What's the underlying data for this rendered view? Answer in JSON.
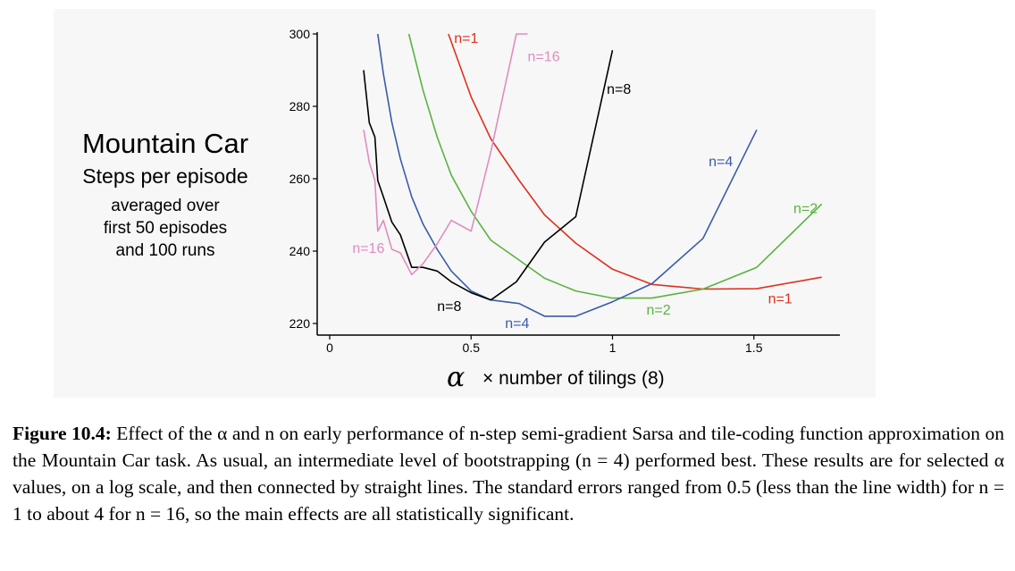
{
  "chart_data": {
    "type": "line",
    "title": "Mountain Car",
    "subtitle": "Steps per episode",
    "description_lines": [
      "averaged over",
      "first 50 episodes",
      "and 100 runs"
    ],
    "xlabel_symbol": "α",
    "xlabel_text": "× number of tilings (8)",
    "ylabel": "",
    "xlim": [
      0,
      1.8
    ],
    "ylim": [
      220,
      300
    ],
    "xticks": [
      0,
      0.5,
      1,
      1.5
    ],
    "xtick_labels": [
      "0",
      "0.5",
      "1",
      "1.5"
    ],
    "yticks": [
      220,
      240,
      260,
      280,
      300
    ],
    "ytick_labels": [
      "220",
      "240",
      "260",
      "280",
      "300"
    ],
    "grid": false,
    "series": [
      {
        "name": "n=1",
        "color": "#e0301e",
        "x": [
          0.42,
          0.5,
          0.57,
          0.67,
          0.76,
          0.87,
          1.0,
          1.14,
          1.32,
          1.51,
          1.74
        ],
        "y": [
          300,
          282.6,
          271,
          259.5,
          250,
          242.2,
          235,
          230.8,
          229.5,
          229.6,
          232.8
        ]
      },
      {
        "name": "n=2",
        "color": "#5ab33e",
        "x": [
          0.28,
          0.33,
          0.38,
          0.43,
          0.5,
          0.57,
          0.67,
          0.76,
          0.87,
          1.0,
          1.14,
          1.32,
          1.51,
          1.74
        ],
        "y": [
          300,
          284.5,
          271.5,
          261,
          251,
          243,
          237.5,
          232.5,
          229,
          227,
          227,
          229.5,
          235.5,
          253
        ]
      },
      {
        "name": "n=4",
        "color": "#3a5ba8",
        "x": [
          0.17,
          0.19,
          0.22,
          0.25,
          0.29,
          0.33,
          0.38,
          0.43,
          0.5,
          0.57,
          0.67,
          0.76,
          0.87,
          1.0,
          1.14,
          1.32,
          1.51
        ],
        "y": [
          300,
          289,
          275.5,
          265.5,
          255,
          247.5,
          240.5,
          234.5,
          229,
          226.5,
          225.5,
          222,
          222,
          226,
          231,
          243.5,
          273.5
        ]
      },
      {
        "name": "n=8",
        "color": "#000000",
        "x": [
          0.12,
          0.14,
          0.16,
          0.17,
          0.19,
          0.22,
          0.25,
          0.29,
          0.33,
          0.38,
          0.43,
          0.5,
          0.57,
          0.66,
          0.76,
          0.87,
          1.0
        ],
        "y": [
          290,
          275.5,
          271.5,
          259.5,
          255,
          248,
          244.5,
          235.5,
          235.5,
          234.5,
          231.5,
          228.5,
          226.5,
          231.5,
          242.5,
          249.5,
          295.5
        ]
      },
      {
        "name": "n=16",
        "color": "#e08cc0",
        "x": [
          0.12,
          0.14,
          0.16,
          0.17,
          0.19,
          0.22,
          0.25,
          0.29,
          0.33,
          0.38,
          0.43,
          0.5,
          0.57,
          0.66,
          0.7
        ],
        "y": [
          273.5,
          264.5,
          259.5,
          245.5,
          248.5,
          240.5,
          239.5,
          233.5,
          236.5,
          242,
          248.5,
          245.5,
          267.5,
          300,
          300
        ]
      }
    ],
    "annotations": [
      {
        "text": "n=1",
        "color": "#e0301e",
        "x": 0.44,
        "y": 299
      },
      {
        "text": "n=16",
        "color": "#e08cc0",
        "x": 0.7,
        "y": 294
      },
      {
        "text": "n=8",
        "color": "#000000",
        "x": 0.98,
        "y": 285
      },
      {
        "text": "n=4",
        "color": "#3a5ba8",
        "x": 1.34,
        "y": 265
      },
      {
        "text": "n=2",
        "color": "#5ab33e",
        "x": 1.64,
        "y": 252
      },
      {
        "text": "n=16",
        "color": "#e08cc0",
        "x": 0.08,
        "y": 241
      },
      {
        "text": "n=1",
        "color": "#e0301e",
        "x": 1.55,
        "y": 227
      },
      {
        "text": "n=2",
        "color": "#5ab33e",
        "x": 1.12,
        "y": 224
      },
      {
        "text": "n=8",
        "color": "#000000",
        "x": 0.38,
        "y": 225
      },
      {
        "text": "n=4",
        "color": "#3a5ba8",
        "x": 0.62,
        "y": 220.2
      }
    ]
  },
  "caption": {
    "label": "Figure 10.4:",
    "text": "Effect of the α and n on early performance of n-step semi-gradient Sarsa and tile-coding function approximation on the Mountain Car task. As usual, an intermediate level of bootstrapping (n = 4) performed best. These results are for selected α values, on a log scale, and then connected by straight lines. The standard errors ranged from 0.5 (less than the line width) for n = 1 to about 4 for n = 16, so the main effects are all statistically significant."
  }
}
